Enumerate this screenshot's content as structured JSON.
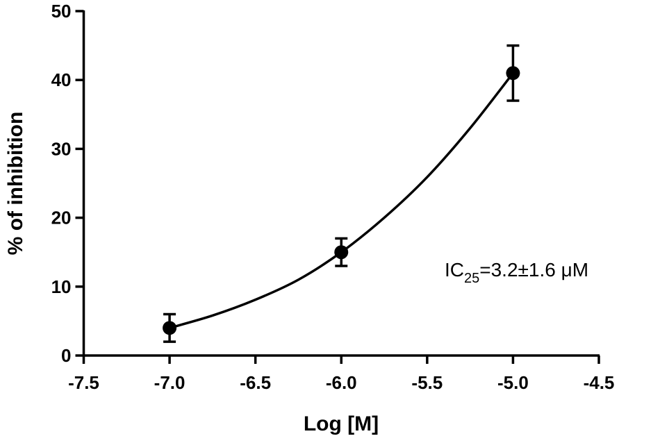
{
  "chart_data": {
    "type": "scatter",
    "x_label": "Log [M]",
    "y_label": "% of inhibition",
    "x": [
      -7,
      -6,
      -5
    ],
    "values": [
      4,
      15,
      41
    ],
    "errors": [
      2,
      2,
      4
    ],
    "color": "#000000",
    "fit": {
      "x": [
        -7,
        -6.75,
        -6.5,
        -6.25,
        -6,
        -5.75,
        -5.5,
        -5.25,
        -5
      ],
      "values": [
        4,
        5.8,
        8.1,
        11,
        15,
        20,
        25.9,
        33,
        41
      ]
    },
    "annotation": {
      "text": "IC",
      "subscript": "25",
      "suffix": "=3.2±1.6 μM"
    },
    "xlim": [
      -7.5,
      -4.5
    ],
    "xticks": [
      -7.5,
      {
        "value": -7.0,
        "label": "-7.0"
      },
      -6.5,
      {
        "value": -6.0,
        "label": "-6.0"
      },
      -5.5,
      {
        "value": -5.0,
        "label": "-5.0"
      },
      -4.5
    ],
    "ylim": [
      0,
      50
    ],
    "yticks": [
      0,
      10,
      20,
      30,
      40,
      50
    ]
  }
}
